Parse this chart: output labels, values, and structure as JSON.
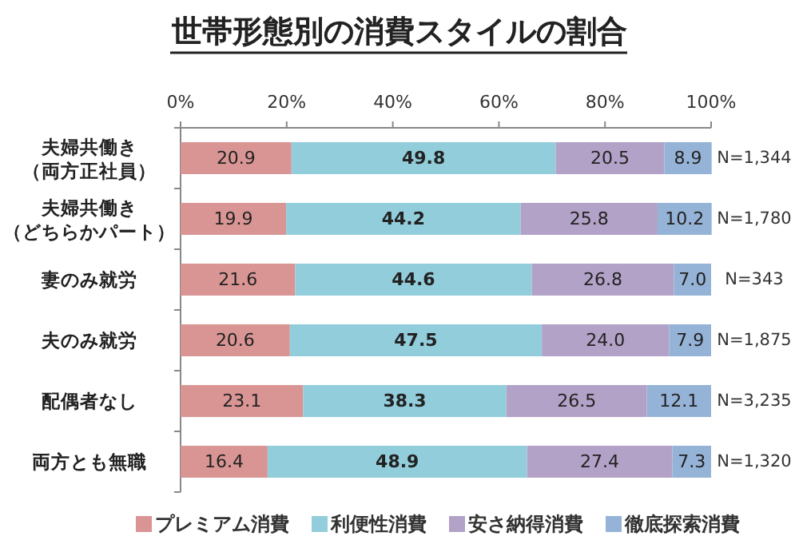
{
  "chart_data": {
    "type": "bar",
    "orientation": "horizontal",
    "stacked": true,
    "title": "世帯形態別の消費スタイルの割合",
    "categories": [
      "夫婦共働き（両方正社員）",
      "夫婦共働き（どちらかパート）",
      "妻のみ就労",
      "夫のみ就労",
      "配偶者なし",
      "両方とも無職"
    ],
    "series": [
      {
        "name": "プレミアム消費",
        "color": "#d99594",
        "values": [
          20.9,
          19.9,
          21.6,
          20.6,
          23.1,
          16.4
        ]
      },
      {
        "name": "利便性消費",
        "color": "#92cddc",
        "values": [
          49.8,
          44.2,
          44.6,
          47.5,
          38.3,
          48.9
        ]
      },
      {
        "name": "安さ納得消費",
        "color": "#b3a2c7",
        "values": [
          20.5,
          25.8,
          26.8,
          24.0,
          26.5,
          27.4
        ],
        "value_labels": [
          "20.5",
          "25.8",
          "26.8",
          "24.0",
          "26.5",
          "27.4"
        ]
      },
      {
        "name": "徹底探索消費",
        "color": "#95b3d7",
        "values": [
          8.9,
          10.2,
          7.0,
          7.9,
          12.1,
          7.3
        ],
        "value_labels": [
          "8.9",
          "10.2",
          "7.0",
          "7.9",
          "12.1",
          "7.3"
        ]
      }
    ],
    "xlim": [
      0,
      100
    ],
    "xticks": [
      {
        "value": 0,
        "label": "0%"
      },
      {
        "value": 20,
        "label": "20%"
      },
      {
        "value": 40,
        "label": "40%"
      },
      {
        "value": 60,
        "label": "60%"
      },
      {
        "value": 80,
        "label": "80%"
      },
      {
        "value": 100,
        "label": "100%"
      }
    ],
    "data_labels": true,
    "legend": "bottom",
    "annotations": [
      "N=1,344",
      "N=1,780",
      "N=343",
      "N=1,875",
      "N=3,235",
      "N=1,320"
    ]
  }
}
